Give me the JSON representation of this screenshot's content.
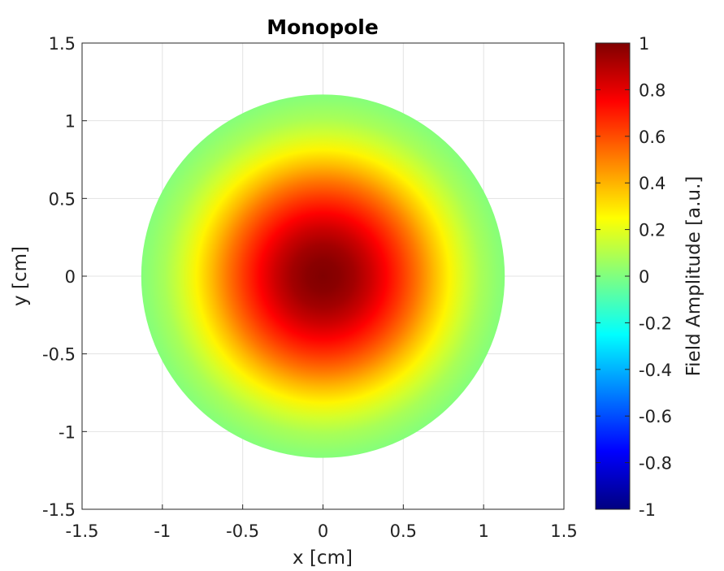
{
  "chart_data": {
    "type": "heatmap",
    "title": "Monopole",
    "xlabel": "x [cm]",
    "ylabel": "y [cm]",
    "xlim": [
      -1.5,
      1.5
    ],
    "ylim": [
      -1.5,
      1.5
    ],
    "xticks": [
      "-1.5",
      "-1",
      "-0.5",
      "0",
      "0.5",
      "1",
      "1.5"
    ],
    "yticks": [
      "-1.5",
      "-1",
      "-0.5",
      "0",
      "0.5",
      "1",
      "1.5"
    ],
    "grid": true,
    "field": {
      "shape": "circular",
      "center": [
        0,
        0
      ],
      "radius": 1.15,
      "profile": "radial",
      "radial_samples": {
        "r": [
          0,
          0.1,
          0.2,
          0.3,
          0.4,
          0.5,
          0.6,
          0.7,
          0.8,
          0.9,
          1.0,
          1.1,
          1.15
        ],
        "amplitude": [
          1.0,
          0.98,
          0.93,
          0.85,
          0.75,
          0.64,
          0.52,
          0.39,
          0.27,
          0.16,
          0.08,
          0.03,
          0.01
        ]
      }
    },
    "colorbar": {
      "label": "Field Amplitude [a.u.]",
      "range": [
        -1,
        1
      ],
      "ticks": [
        "-1",
        "-0.8",
        "-0.6",
        "-0.4",
        "-0.2",
        "0",
        "0.2",
        "0.4",
        "0.6",
        "0.8",
        "1"
      ],
      "colormap": "jet"
    }
  }
}
